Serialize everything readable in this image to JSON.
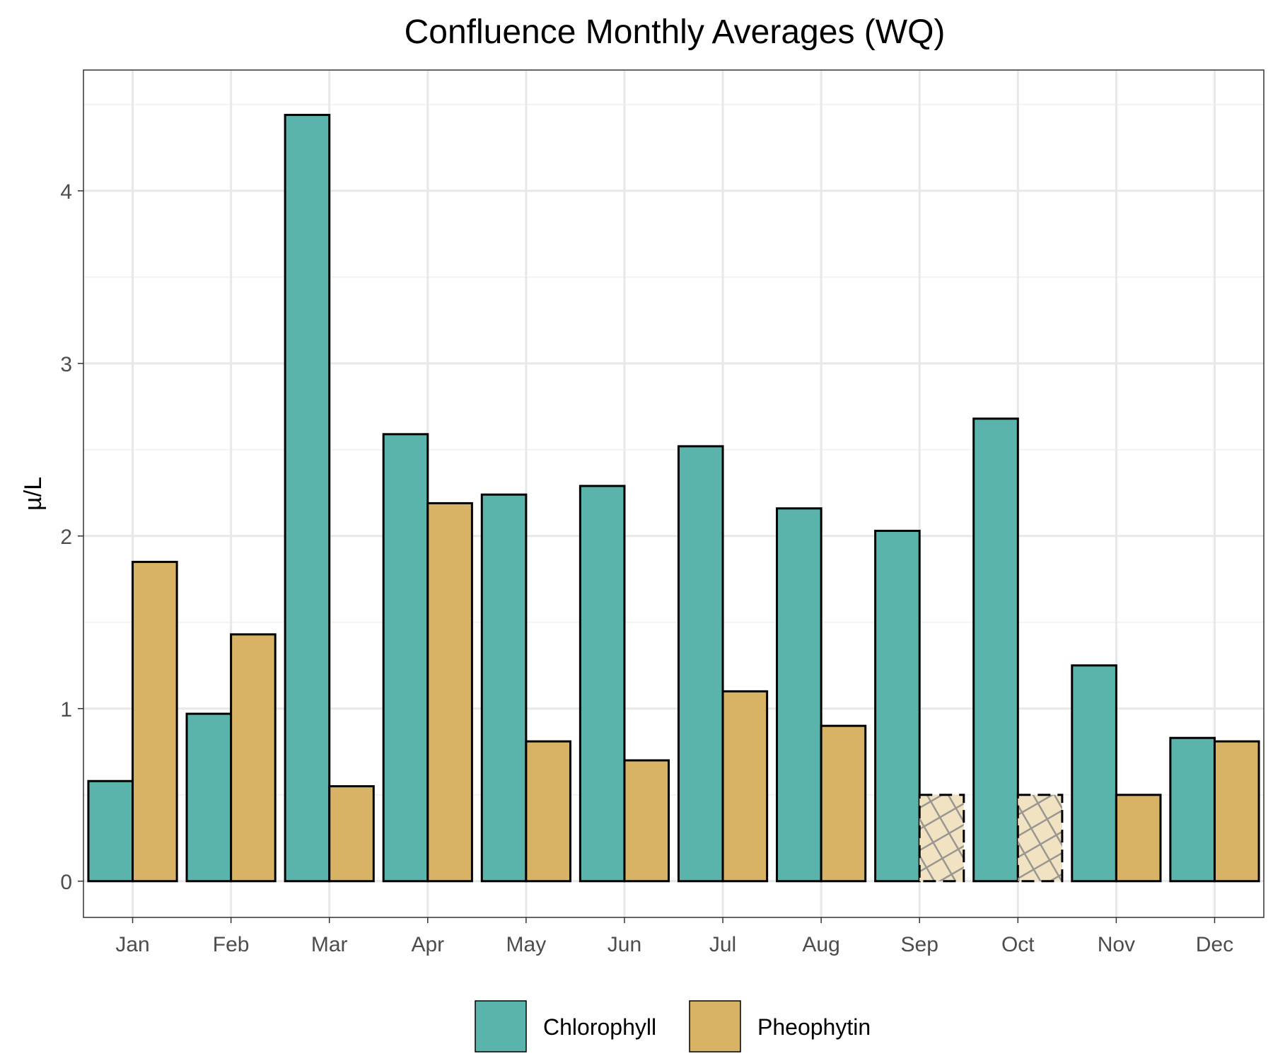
{
  "chart_data": {
    "type": "bar",
    "title": "Confluence Monthly Averages (WQ)",
    "xlabel": "",
    "ylabel": "µ/L",
    "ylim": [
      -0.21,
      4.7
    ],
    "yticks": [
      0,
      1,
      2,
      3,
      4
    ],
    "grid": true,
    "legend_position": "bottom",
    "categories": [
      "Jan",
      "Feb",
      "Mar",
      "Apr",
      "May",
      "Jun",
      "Jul",
      "Aug",
      "Sep",
      "Oct",
      "Nov",
      "Dec"
    ],
    "series": [
      {
        "name": "Chlorophyll",
        "color": "#5ab4ac",
        "values": [
          0.58,
          0.97,
          4.44,
          2.59,
          2.24,
          2.29,
          2.52,
          2.16,
          2.03,
          2.68,
          1.25,
          0.83
        ]
      },
      {
        "name": "Pheophytin",
        "color": "#d8b365",
        "values": [
          1.85,
          1.43,
          0.55,
          2.19,
          0.81,
          0.7,
          1.1,
          0.9,
          0.5,
          0.5,
          0.5,
          0.81
        ],
        "below_detection_months": [
          "Sep",
          "Oct"
        ],
        "below_detection_color": "#f1e2c2"
      }
    ]
  }
}
